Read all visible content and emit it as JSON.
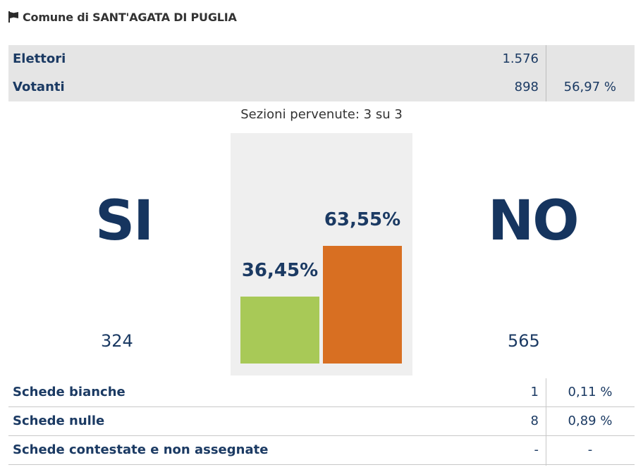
{
  "header": {
    "title": "Comune di SANT'AGATA DI PUGLIA",
    "icon": "flag-icon"
  },
  "summary": [
    {
      "label": "Elettori",
      "value": "1.576",
      "pct": ""
    },
    {
      "label": "Votanti",
      "value": "898",
      "pct": "56,97 %"
    }
  ],
  "sezioni": "Sezioni pervenute: 3 su 3",
  "si": {
    "label": "SI",
    "count": "324",
    "pct_label": "36,45%",
    "pct": 36.45,
    "color": "#a8c957"
  },
  "no": {
    "label": "NO",
    "count": "565",
    "pct_label": "63,55%",
    "pct": 63.55,
    "color": "#d86f22"
  },
  "details": [
    {
      "label": "Schede bianche",
      "value": "1",
      "pct": "0,11 %"
    },
    {
      "label": "Schede nulle",
      "value": "8",
      "pct": "0,89 %"
    },
    {
      "label": "Schede contestate e non assegnate",
      "value": "-",
      "pct": "-"
    }
  ]
}
